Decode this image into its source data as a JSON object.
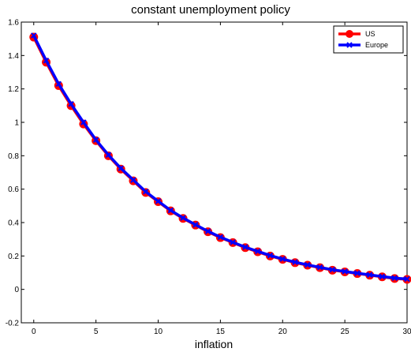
{
  "chart_data": {
    "type": "line",
    "title": "constant unemployment policy",
    "xlabel": "inflation",
    "ylabel": "",
    "xlim": [
      -1,
      30
    ],
    "ylim": [
      -0.2,
      1.6
    ],
    "x_ticks": [
      0,
      5,
      10,
      15,
      20,
      25,
      30
    ],
    "y_ticks": [
      -0.2,
      0,
      0.2,
      0.4,
      0.6,
      0.8,
      1,
      1.2,
      1.4,
      1.6
    ],
    "x_tick_labels": [
      "0",
      "5",
      "10",
      "15",
      "20",
      "25",
      "30"
    ],
    "y_tick_labels": [
      "-0.2",
      "0",
      "0.2",
      "0.4",
      "0.6",
      "0.8",
      "1",
      "1.2",
      "1.4",
      "1.6"
    ],
    "grid": false,
    "legend_position": "top-right",
    "x": [
      0,
      1,
      2,
      3,
      4,
      5,
      6,
      7,
      8,
      9,
      10,
      11,
      12,
      13,
      14,
      15,
      16,
      17,
      18,
      19,
      20,
      21,
      22,
      23,
      24,
      25,
      26,
      27,
      28,
      29,
      30
    ],
    "series": [
      {
        "name": "US",
        "color": "#ff0000",
        "marker": "circle",
        "values": [
          1.51,
          1.36,
          1.22,
          1.1,
          0.99,
          0.89,
          0.8,
          0.72,
          0.65,
          0.58,
          0.525,
          0.47,
          0.425,
          0.385,
          0.345,
          0.31,
          0.28,
          0.25,
          0.225,
          0.2,
          0.18,
          0.16,
          0.145,
          0.13,
          0.115,
          0.105,
          0.095,
          0.085,
          0.075,
          0.065,
          0.06
        ]
      },
      {
        "name": "Europe",
        "color": "#0000ff",
        "marker": "x",
        "values": [
          1.52,
          1.37,
          1.23,
          1.11,
          1.0,
          0.895,
          0.805,
          0.725,
          0.655,
          0.585,
          0.528,
          0.473,
          0.428,
          0.387,
          0.348,
          0.313,
          0.282,
          0.253,
          0.228,
          0.203,
          0.182,
          0.163,
          0.147,
          0.132,
          0.118,
          0.107,
          0.097,
          0.087,
          0.077,
          0.068,
          0.062
        ]
      }
    ]
  }
}
